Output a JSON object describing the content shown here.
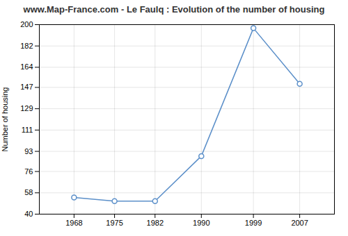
{
  "chart_data": {
    "type": "line",
    "title": "www.Map-France.com - Le Faulq : Evolution of the number of housing",
    "ylabel": "Number of housing",
    "x": [
      1968,
      1975,
      1982,
      1990,
      1999,
      2007
    ],
    "values": [
      54,
      51,
      51,
      89,
      197,
      150
    ],
    "color": "#5b8fc9",
    "marker": "circle",
    "xlim": [
      1962,
      2013
    ],
    "xticks": [
      1968,
      1975,
      1982,
      1990,
      1999,
      2007
    ],
    "ylim": [
      40,
      200
    ],
    "yticks": [
      40,
      58,
      76,
      93,
      111,
      129,
      147,
      164,
      182,
      200
    ],
    "grid": true
  }
}
